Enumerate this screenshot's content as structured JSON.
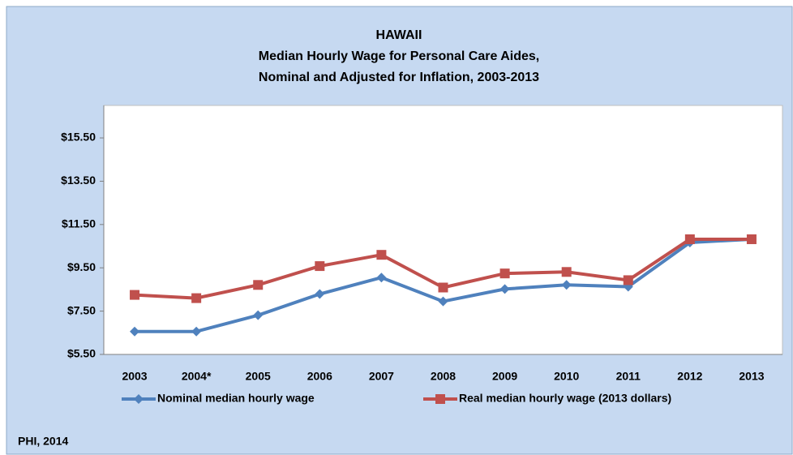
{
  "chart_data": {
    "type": "line",
    "title": [
      "HAWAII",
      "Median Hourly Wage for Personal Care Aides,",
      "Nominal and Adjusted for Inflation, 2003-2013"
    ],
    "source": "PHI, 2014",
    "categories": [
      "2003",
      "2004*",
      "2005",
      "2006",
      "2007",
      "2008",
      "2009",
      "2010",
      "2011",
      "2012",
      "2013"
    ],
    "series": [
      {
        "name": "Nominal median hourly wage",
        "color": "#4f81bd",
        "marker": "diamond",
        "values": [
          6.56,
          6.56,
          7.31,
          8.29,
          9.05,
          7.95,
          8.52,
          8.71,
          8.63,
          10.67,
          10.82
        ]
      },
      {
        "name": "Real median hourly wage (2013 dollars)",
        "color": "#c0504d",
        "marker": "square",
        "values": [
          8.25,
          8.1,
          8.71,
          9.58,
          10.1,
          8.59,
          9.24,
          9.31,
          8.93,
          10.82,
          10.82
        ]
      }
    ],
    "ylim": [
      5.5,
      17
    ],
    "yticks": [
      {
        "value": 5.5,
        "label": "$5.50"
      },
      {
        "value": 7.5,
        "label": "$7.50"
      },
      {
        "value": 9.5,
        "label": "$9.50"
      },
      {
        "value": 11.5,
        "label": "$11.50"
      },
      {
        "value": 13.5,
        "label": "$13.50"
      },
      {
        "value": 15.5,
        "label": "$15.50"
      }
    ],
    "grid": false,
    "legend": "bottom"
  }
}
